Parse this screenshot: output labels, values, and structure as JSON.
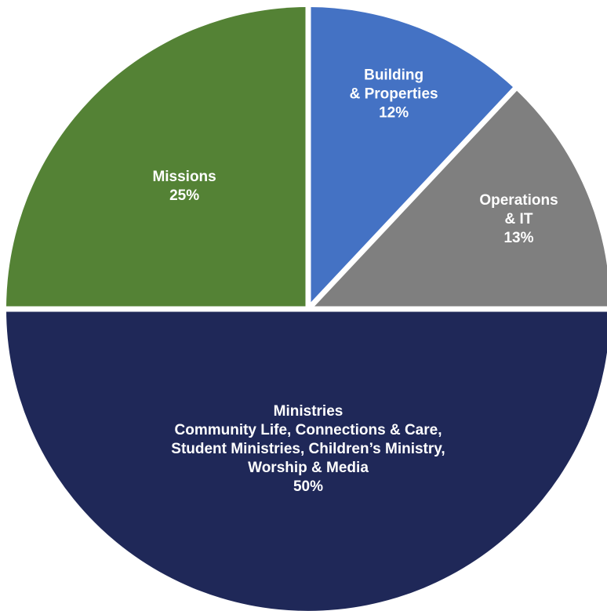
{
  "chart_data": {
    "type": "pie",
    "title": "",
    "slices": [
      {
        "name": "Building & Properties",
        "label_lines": [
          "Building",
          "& Properties"
        ],
        "value": 12,
        "value_label": "12%",
        "color": "#4472c4"
      },
      {
        "name": "Operations & IT",
        "label_lines": [
          "Operations",
          "& IT"
        ],
        "value": 13,
        "value_label": "13%",
        "color": "#7f7f7f"
      },
      {
        "name": "Ministries",
        "label_lines": [
          "Ministries",
          "Community Life, Connections & Care,",
          "Student Ministries, Children’s Ministry,",
          "Worship & Media"
        ],
        "value": 50,
        "value_label": "50%",
        "color": "#1f2858"
      },
      {
        "name": "Missions",
        "label_lines": [
          "Missions"
        ],
        "value": 25,
        "value_label": "25%",
        "color": "#548235"
      }
    ],
    "start_angle_deg": 0,
    "direction": "clockwise",
    "separator_color": "#ffffff",
    "legend": "none"
  }
}
